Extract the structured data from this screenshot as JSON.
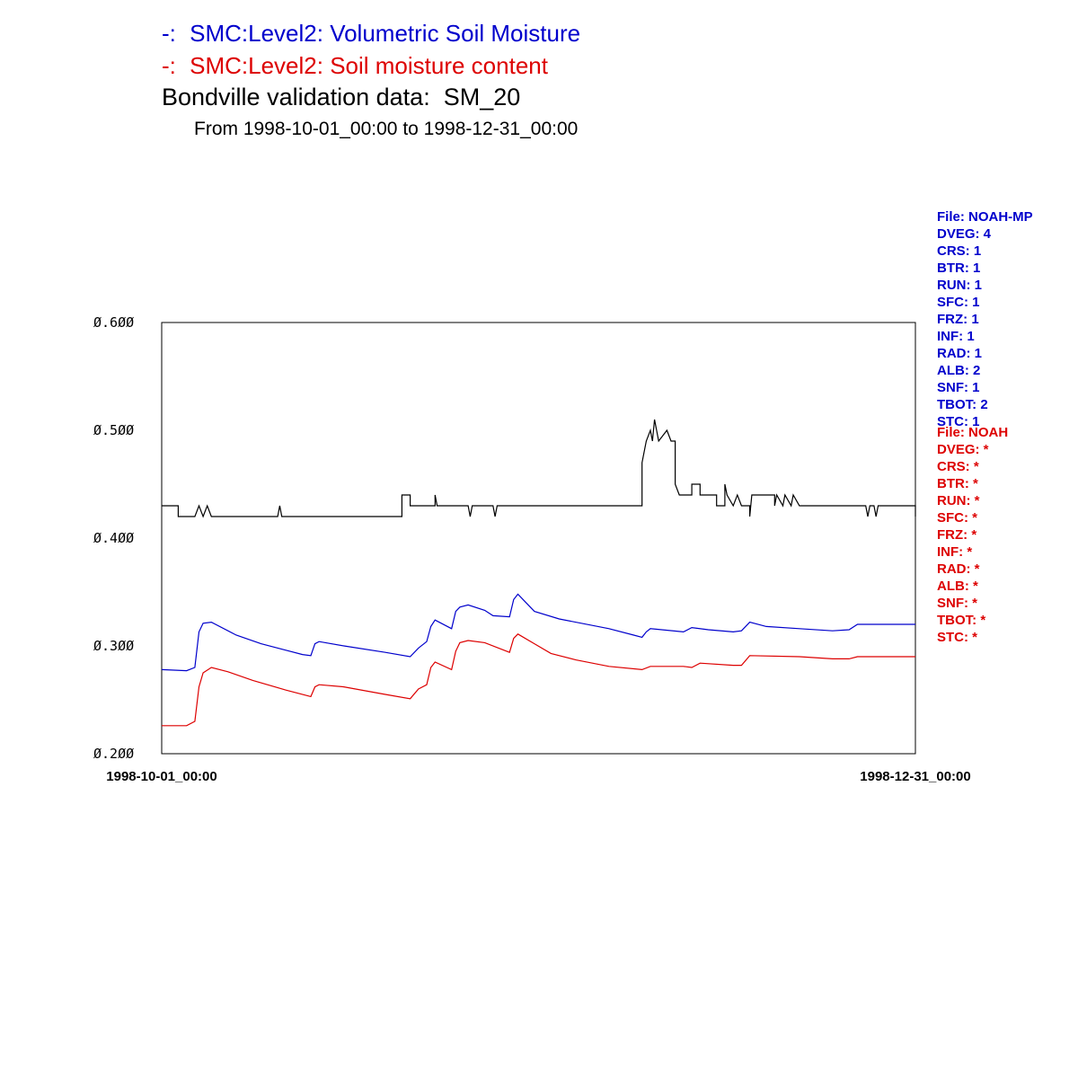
{
  "colors": {
    "series1": "#0000cc",
    "series2": "#dd0000",
    "observed": "#000000"
  },
  "title_lines": [
    {
      "prefix": "-:",
      "text": "SMC:Level2: Volumetric Soil Moisture"
    },
    {
      "prefix": "-:",
      "text": "SMC:Level2: Soil moisture content"
    }
  ],
  "heading": "Bondville validation data:  SM_20",
  "subheading": "From 1998-10-01_00:00 to 1998-12-31_00:00",
  "legend_blue": [
    "File: NOAH-MP",
    "DVEG: 4",
    "CRS: 1",
    "BTR: 1",
    "RUN: 1",
    "SFC: 1",
    "FRZ: 1",
    "INF: 1",
    "RAD: 1",
    "ALB: 2",
    "SNF: 1",
    "TBOT: 2",
    "STC: 1"
  ],
  "legend_red": [
    "File: NOAH",
    "DVEG: *",
    "CRS: *",
    "BTR: *",
    "RUN: *",
    "SFC: *",
    "FRZ: *",
    "INF: *",
    "RAD: *",
    "ALB: *",
    "SNF: *",
    "TBOT: *",
    "STC: *"
  ],
  "chart_data": {
    "type": "line",
    "title": "Bondville validation data:  SM_20",
    "subtitle": "From 1998-10-01_00:00 to 1998-12-31_00:00",
    "xlim": [
      "1998-10-01_00:00",
      "1998-12-31_00:00"
    ],
    "ylim": [
      0.2,
      0.6
    ],
    "ytick_labels": [
      "0.200",
      "0.300",
      "0.400",
      "0.500",
      "0.600"
    ],
    "xtick_labels": [
      "1998-10-01_00:00",
      "1998-12-31_00:00"
    ],
    "grid": false,
    "series": [
      {
        "name": "SMC:Level2: Volumetric Soil Moisture",
        "color": "#0000cc",
        "points": [
          [
            "1998-10-01",
            0.278
          ],
          [
            "1998-10-04",
            0.277
          ],
          [
            "1998-10-05",
            0.28
          ],
          [
            "1998-10-05T12",
            0.313
          ],
          [
            "1998-10-06",
            0.321
          ],
          [
            "1998-10-07",
            0.322
          ],
          [
            "1998-10-10",
            0.31
          ],
          [
            "1998-10-13",
            0.302
          ],
          [
            "1998-10-16",
            0.296
          ],
          [
            "1998-10-18",
            0.292
          ],
          [
            "1998-10-19",
            0.291
          ],
          [
            "1998-10-19T12",
            0.302
          ],
          [
            "1998-10-20",
            0.304
          ],
          [
            "1998-10-23",
            0.3
          ],
          [
            "1998-10-28",
            0.294
          ],
          [
            "1998-10-31",
            0.29
          ],
          [
            "1998-11-01",
            0.298
          ],
          [
            "1998-11-02",
            0.304
          ],
          [
            "1998-11-02T12",
            0.318
          ],
          [
            "1998-11-03",
            0.324
          ],
          [
            "1998-11-05",
            0.316
          ],
          [
            "1998-11-05T12",
            0.332
          ],
          [
            "1998-11-06",
            0.336
          ],
          [
            "1998-11-07",
            0.338
          ],
          [
            "1998-11-09",
            0.333
          ],
          [
            "1998-11-10",
            0.328
          ],
          [
            "1998-11-12",
            0.327
          ],
          [
            "1998-11-12T12",
            0.343
          ],
          [
            "1998-11-13",
            0.348
          ],
          [
            "1998-11-15",
            0.332
          ],
          [
            "1998-11-18",
            0.325
          ],
          [
            "1998-11-24",
            0.316
          ],
          [
            "1998-11-27",
            0.31
          ],
          [
            "1998-11-28",
            0.308
          ],
          [
            "1998-11-28T12",
            0.313
          ],
          [
            "1998-11-29",
            0.316
          ],
          [
            "1998-12-03",
            0.313
          ],
          [
            "1998-12-04",
            0.317
          ],
          [
            "1998-12-06",
            0.315
          ],
          [
            "1998-12-09",
            0.313
          ],
          [
            "1998-12-10",
            0.314
          ],
          [
            "1998-12-11",
            0.322
          ],
          [
            "1998-12-13",
            0.318
          ],
          [
            "1998-12-17",
            0.316
          ],
          [
            "1998-12-21",
            0.314
          ],
          [
            "1998-12-23",
            0.315
          ],
          [
            "1998-12-24",
            0.32
          ],
          [
            "1998-12-31",
            0.32
          ]
        ]
      },
      {
        "name": "SMC:Level2: Soil moisture content",
        "color": "#dd0000",
        "points": [
          [
            "1998-10-01",
            0.226
          ],
          [
            "1998-10-04",
            0.226
          ],
          [
            "1998-10-05",
            0.23
          ],
          [
            "1998-10-05T12",
            0.262
          ],
          [
            "1998-10-06",
            0.275
          ],
          [
            "1998-10-07",
            0.28
          ],
          [
            "1998-10-09",
            0.276
          ],
          [
            "1998-10-12",
            0.268
          ],
          [
            "1998-10-16",
            0.259
          ],
          [
            "1998-10-19",
            0.253
          ],
          [
            "1998-10-19T12",
            0.262
          ],
          [
            "1998-10-20",
            0.264
          ],
          [
            "1998-10-23",
            0.262
          ],
          [
            "1998-10-28",
            0.255
          ],
          [
            "1998-10-31",
            0.251
          ],
          [
            "1998-11-01",
            0.26
          ],
          [
            "1998-11-02",
            0.264
          ],
          [
            "1998-11-02T12",
            0.28
          ],
          [
            "1998-11-03",
            0.285
          ],
          [
            "1998-11-05",
            0.278
          ],
          [
            "1998-11-05T12",
            0.295
          ],
          [
            "1998-11-06",
            0.303
          ],
          [
            "1998-11-07",
            0.305
          ],
          [
            "1998-11-09",
            0.303
          ],
          [
            "1998-11-12",
            0.294
          ],
          [
            "1998-11-12T12",
            0.307
          ],
          [
            "1998-11-13",
            0.311
          ],
          [
            "1998-11-15",
            0.302
          ],
          [
            "1998-11-17",
            0.293
          ],
          [
            "1998-11-20",
            0.287
          ],
          [
            "1998-11-24",
            0.281
          ],
          [
            "1998-11-28",
            0.278
          ],
          [
            "1998-11-29",
            0.281
          ],
          [
            "1998-12-03",
            0.281
          ],
          [
            "1998-12-04",
            0.28
          ],
          [
            "1998-12-05",
            0.284
          ],
          [
            "1998-12-09",
            0.282
          ],
          [
            "1998-12-10",
            0.282
          ],
          [
            "1998-12-11",
            0.291
          ],
          [
            "1998-12-17",
            0.29
          ],
          [
            "1998-12-21",
            0.288
          ],
          [
            "1998-12-23",
            0.288
          ],
          [
            "1998-12-24",
            0.29
          ],
          [
            "1998-12-31",
            0.29
          ]
        ]
      },
      {
        "name": "Bondville validation data: SM_20",
        "color": "#000000",
        "points": [
          [
            "1998-10-01",
            0.43
          ],
          [
            "1998-10-03",
            0.43
          ],
          [
            "1998-10-03",
            0.42
          ],
          [
            "1998-10-05",
            0.42
          ],
          [
            "1998-10-05T12",
            0.43
          ],
          [
            "1998-10-06",
            0.42
          ],
          [
            "1998-10-06T12",
            0.43
          ],
          [
            "1998-10-07",
            0.42
          ],
          [
            "1998-10-15",
            0.42
          ],
          [
            "1998-10-15T06",
            0.43
          ],
          [
            "1998-10-15T12",
            0.42
          ],
          [
            "1998-10-30",
            0.42
          ],
          [
            "1998-10-30",
            0.44
          ],
          [
            "1998-10-31",
            0.44
          ],
          [
            "1998-10-31",
            0.43
          ],
          [
            "1998-11-03",
            0.43
          ],
          [
            "1998-11-03",
            0.44
          ],
          [
            "1998-11-03T06",
            0.43
          ],
          [
            "1998-11-07",
            0.43
          ],
          [
            "1998-11-07T06",
            0.42
          ],
          [
            "1998-11-07T12",
            0.43
          ],
          [
            "1998-11-10",
            0.43
          ],
          [
            "1998-11-10T06",
            0.42
          ],
          [
            "1998-11-10T12",
            0.43
          ],
          [
            "1998-11-28",
            0.43
          ],
          [
            "1998-11-28",
            0.47
          ],
          [
            "1998-11-28T12",
            0.49
          ],
          [
            "1998-11-29",
            0.5
          ],
          [
            "1998-11-29T06",
            0.49
          ],
          [
            "1998-11-29T12",
            0.51
          ],
          [
            "1998-11-30",
            0.49
          ],
          [
            "1998-12-01",
            0.5
          ],
          [
            "1998-12-01T12",
            0.49
          ],
          [
            "1998-12-02",
            0.49
          ],
          [
            "1998-12-02",
            0.45
          ],
          [
            "1998-12-02T12",
            0.44
          ],
          [
            "1998-12-04",
            0.44
          ],
          [
            "1998-12-04",
            0.45
          ],
          [
            "1998-12-05",
            0.45
          ],
          [
            "1998-12-05",
            0.44
          ],
          [
            "1998-12-07",
            0.44
          ],
          [
            "1998-12-07",
            0.43
          ],
          [
            "1998-12-08",
            0.43
          ],
          [
            "1998-12-08",
            0.45
          ],
          [
            "1998-12-08T06",
            0.44
          ],
          [
            "1998-12-09",
            0.43
          ],
          [
            "1998-12-09T12",
            0.44
          ],
          [
            "1998-12-10",
            0.43
          ],
          [
            "1998-12-11",
            0.43
          ],
          [
            "1998-12-11",
            0.42
          ],
          [
            "1998-12-11T06",
            0.44
          ],
          [
            "1998-12-14",
            0.44
          ],
          [
            "1998-12-14",
            0.43
          ],
          [
            "1998-12-14T06",
            0.44
          ],
          [
            "1998-12-15",
            0.43
          ],
          [
            "1998-12-15T06",
            0.44
          ],
          [
            "1998-12-16",
            0.43
          ],
          [
            "1998-12-16T06",
            0.44
          ],
          [
            "1998-12-17",
            0.43
          ],
          [
            "1998-12-25",
            0.43
          ],
          [
            "1998-12-25T06",
            0.42
          ],
          [
            "1998-12-25T12",
            0.43
          ],
          [
            "1998-12-26",
            0.43
          ],
          [
            "1998-12-26T06",
            0.42
          ],
          [
            "1998-12-26T12",
            0.43
          ],
          [
            "1998-12-31",
            0.43
          ],
          [
            "1998-12-31",
            0.42
          ]
        ]
      }
    ]
  }
}
